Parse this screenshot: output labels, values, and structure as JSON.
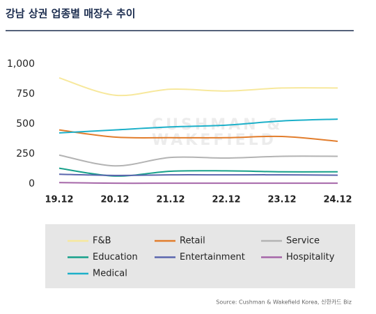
{
  "chart_data": {
    "type": "line",
    "title": "강남 상권 업종별 매장수 추이",
    "categories": [
      "19.12",
      "20.12",
      "21.12",
      "22.12",
      "23.12",
      "24.12"
    ],
    "series": [
      {
        "name": "F&B",
        "color": "#f7e89c",
        "values": [
          885,
          740,
          790,
          775,
          800,
          800
        ]
      },
      {
        "name": "Retail",
        "color": "#e27d2c",
        "values": [
          450,
          390,
          385,
          385,
          395,
          355
        ]
      },
      {
        "name": "Service",
        "color": "#b3b3b3",
        "values": [
          240,
          150,
          220,
          215,
          230,
          230
        ]
      },
      {
        "name": "Education",
        "color": "#17a08a",
        "values": [
          130,
          65,
          105,
          108,
          100,
          100
        ]
      },
      {
        "name": "Entertainment",
        "color": "#5a66ad",
        "values": [
          80,
          70,
          75,
          75,
          75,
          72
        ]
      },
      {
        "name": "Hospitality",
        "color": "#a566a8",
        "values": [
          10,
          5,
          5,
          5,
          5,
          5
        ]
      },
      {
        "name": "Medical",
        "color": "#1cb0c9",
        "values": [
          425,
          450,
          475,
          490,
          525,
          540
        ]
      }
    ],
    "ylim": [
      0,
      1000
    ],
    "yticks": [
      0,
      250,
      500,
      750,
      {
        "value": 1000,
        "label": "1,000"
      }
    ],
    "grid": false,
    "legend": "bottom",
    "watermark": [
      "CUSHMAN &",
      "WAKEFIELD"
    ],
    "source": "Source: Cushman & Wakefield Korea, 신한카드 Biz"
  }
}
